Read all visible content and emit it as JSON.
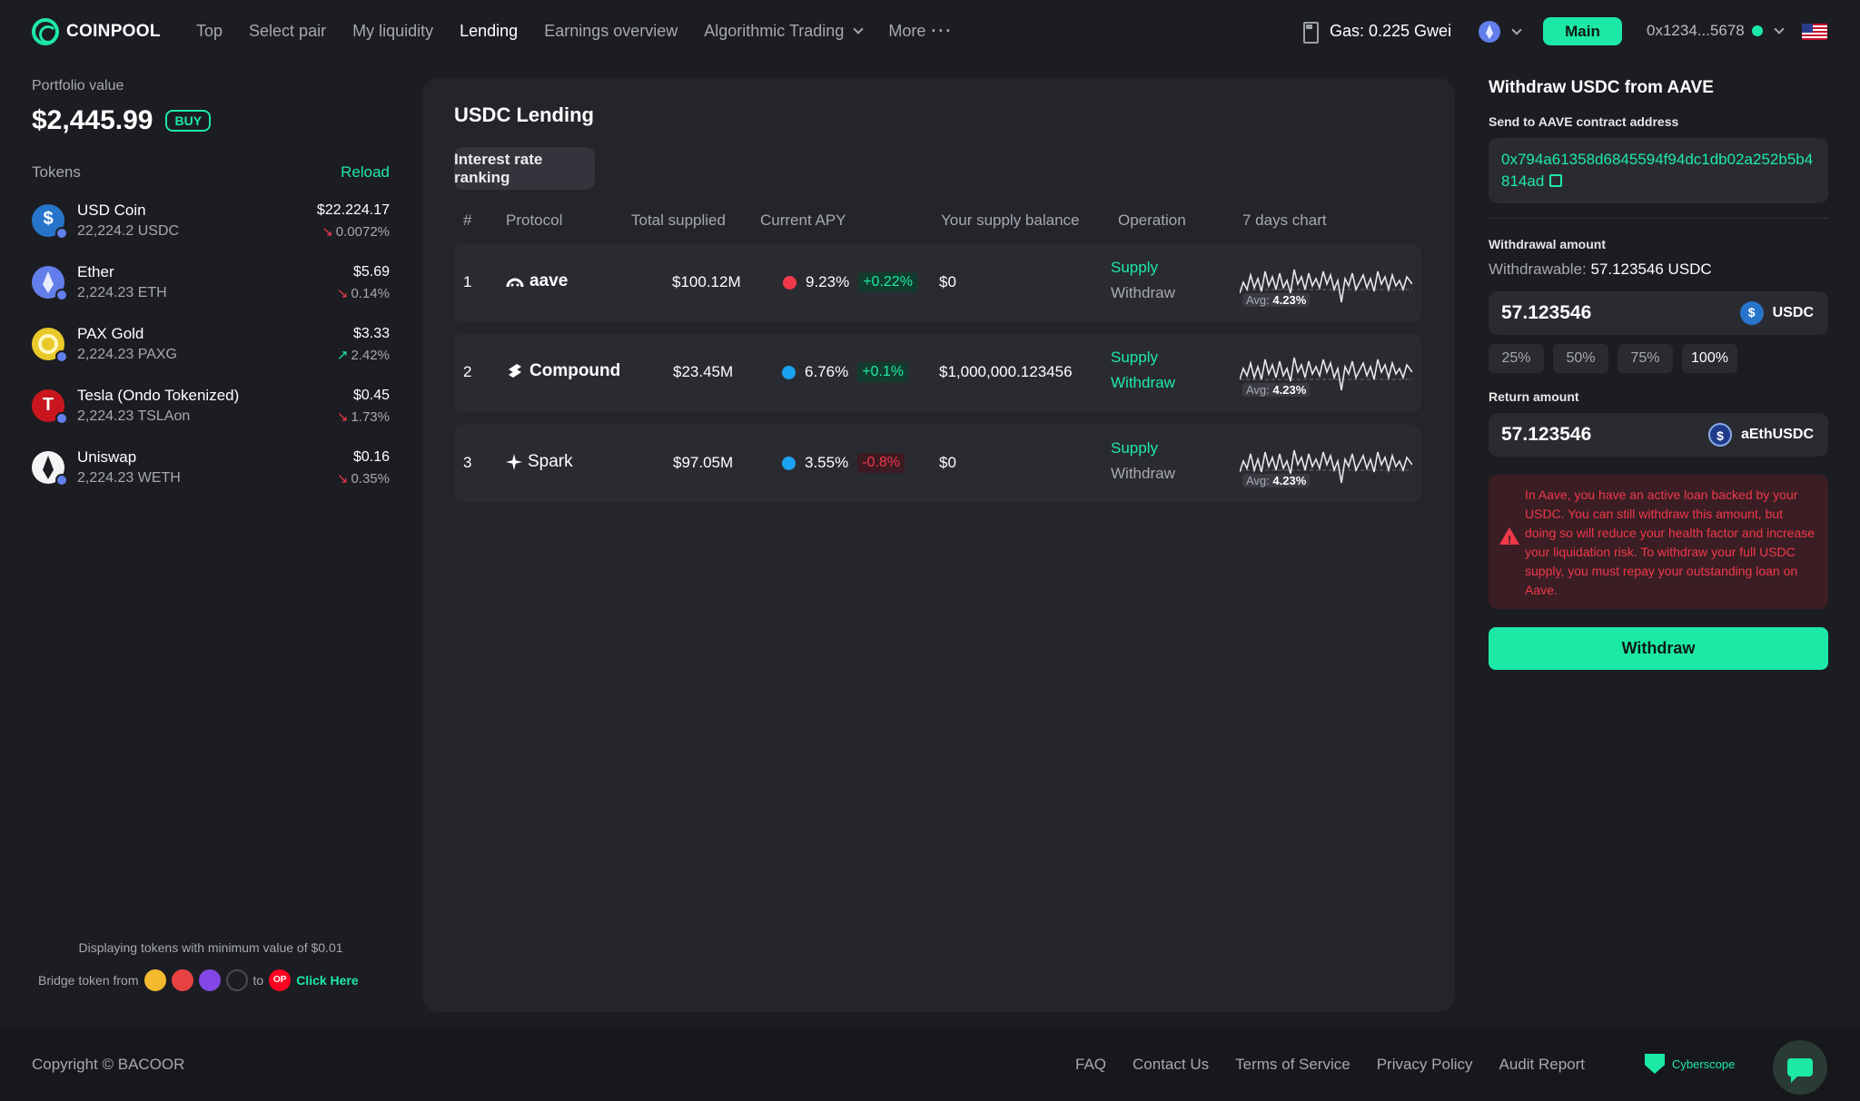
{
  "brand": {
    "name": "COINPOOL",
    "accent": "#1de9a6"
  },
  "nav": {
    "items": [
      "Top",
      "Select pair",
      "My liquidity",
      "Lending",
      "Earnings overview",
      "Algorithmic Trading",
      "More"
    ],
    "active": "Lending"
  },
  "header": {
    "gas": "Gas: 0.225 Gwei",
    "network_btn": "Main",
    "wallet": "0x1234...5678"
  },
  "portfolio": {
    "label": "Portfolio value",
    "value": "$2,445.99",
    "buy_label": "BUY",
    "tokens_label": "Tokens",
    "reload_label": "Reload",
    "tokens": [
      {
        "name": "USD Coin",
        "amount": "22,224.2 USDC",
        "usd": "$22.224.17",
        "change": "0.0072%",
        "dir": "down",
        "icon": "usdc-icon"
      },
      {
        "name": "Ether",
        "amount": "2,224.23 ETH",
        "usd": "$5.69",
        "change": "0.14%",
        "dir": "down",
        "icon": "eth-icon"
      },
      {
        "name": "PAX Gold",
        "amount": "2,224.23 PAXG",
        "usd": "$3.33",
        "change": "2.42%",
        "dir": "up",
        "icon": "paxg-icon"
      },
      {
        "name": "Tesla (Ondo Tokenized)",
        "amount": "2,224.23 TSLAon",
        "usd": "$0.45",
        "change": "1.73%",
        "dir": "down",
        "icon": "tesla-icon"
      },
      {
        "name": "Uniswap",
        "amount": "2,224.23 WETH",
        "usd": "$0.16",
        "change": "0.35%",
        "dir": "down",
        "icon": "uniswap-icon"
      }
    ],
    "min_note": "Displaying tokens with minimum value of $0.01",
    "bridge_prefix": "Bridge token from",
    "bridge_to": "to",
    "bridge_link": "Click Here",
    "bridge_dest": "OP"
  },
  "lending": {
    "title": "USDC Lending",
    "tab": "Interest rate ranking",
    "columns": [
      "#",
      "Protocol",
      "Total supplied",
      "Current APY",
      "Your supply balance",
      "Operation",
      "7 days chart"
    ],
    "rows": [
      {
        "rank": "1",
        "protocol": "aave",
        "total": "$100.12M",
        "apy": "9.23%",
        "apy_change": "+0.22%",
        "change_dir": "up",
        "dot": "#f0384a",
        "balance": "$0",
        "supply": "Supply",
        "withdraw": "Withdraw",
        "withdraw_active": false,
        "avg_label": "Avg:",
        "avg": "4.23%"
      },
      {
        "rank": "2",
        "protocol": "Compound",
        "total": "$23.45M",
        "apy": "6.76%",
        "apy_change": "+0.1%",
        "change_dir": "up",
        "dot": "#1aa3f0",
        "balance": "$1,000,000.123456",
        "supply": "Supply",
        "withdraw": "Withdraw",
        "withdraw_active": true,
        "avg_label": "Avg:",
        "avg": "4.23%"
      },
      {
        "rank": "3",
        "protocol": "Spark",
        "total": "$97.05M",
        "apy": "3.55%",
        "apy_change": "-0.8%",
        "change_dir": "down",
        "dot": "#1aa3f0",
        "balance": "$0",
        "supply": "Supply",
        "withdraw": "Withdraw",
        "withdraw_active": false,
        "avg_label": "Avg:",
        "avg": "4.23%"
      }
    ]
  },
  "withdraw": {
    "title": "Withdraw USDC  from AAVE",
    "send_label": "Send to AAVE contract address",
    "address": "0x794a61358d6845594f94dc1db02a252b5b4814ad",
    "amount_label": "Withdrawal amount",
    "withdrawable_prefix": "Withdrawable:",
    "withdrawable_value": "57.123546 USDC",
    "amount_value": "57.123546",
    "amount_unit": "USDC",
    "pcts": [
      "25%",
      "50%",
      "75%",
      "100%"
    ],
    "pct_active": "100%",
    "return_label": "Return amount",
    "return_value": "57.123546",
    "return_unit": "aEthUSDC",
    "warning": "In Aave, you have an active loan backed by your USDC. You can still withdraw this amount, but doing so will reduce your health factor and increase your liquidation risk. To withdraw your full USDC supply, you must repay your outstanding loan on Aave.",
    "button": "Withdraw"
  },
  "footer": {
    "copyright": "Copyright © BACOOR",
    "links": [
      "FAQ",
      "Contact Us",
      "Terms of Service",
      "Privacy Policy",
      "Audit Report"
    ],
    "audit_brand": "Cyberscope"
  }
}
